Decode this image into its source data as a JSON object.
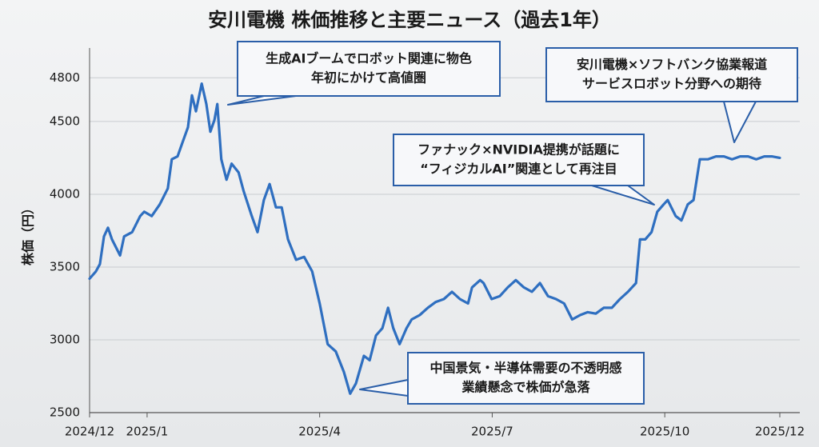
{
  "chart_data": {
    "type": "line",
    "title": "安川電機 株価推移と主要ニュース（過去1年）",
    "y_label": "株価（円）",
    "xlim": [
      0,
      12
    ],
    "xticks": [
      {
        "value": 0,
        "label": "2024/12"
      },
      {
        "value": 1,
        "label": "2025/1"
      },
      {
        "value": 4,
        "label": "2025/4"
      },
      {
        "value": 7,
        "label": "2025/7"
      },
      {
        "value": 10,
        "label": "2025/10"
      },
      {
        "value": 12,
        "label": "2025/12"
      }
    ],
    "ylim": [
      2500,
      4950
    ],
    "yticks": [
      2500,
      3000,
      3500,
      4000,
      4500,
      4800
    ],
    "grid": true,
    "series": [
      {
        "name": "安川電機",
        "color": "#2f6fc0",
        "x": [
          0,
          0.11,
          0.18,
          0.25,
          0.32,
          0.39,
          0.53,
          0.6,
          0.74,
          0.88,
          0.95,
          1.08,
          1.22,
          1.36,
          1.43,
          1.53,
          1.61,
          1.71,
          1.78,
          1.85,
          1.95,
          2.03,
          2.1,
          2.17,
          2.22,
          2.29,
          2.38,
          2.47,
          2.59,
          2.68,
          2.82,
          2.92,
          3.03,
          3.13,
          3.24,
          3.34,
          3.45,
          3.59,
          3.73,
          3.87,
          4.0,
          4.14,
          4.28,
          4.42,
          4.53,
          4.63,
          4.77,
          4.87,
          4.98,
          5.09,
          5.19,
          5.28,
          5.39,
          5.51,
          5.6,
          5.74,
          5.88,
          6.02,
          6.16,
          6.3,
          6.44,
          6.58,
          6.65,
          6.79,
          6.85,
          6.99,
          7.13,
          7.27,
          7.41,
          7.55,
          7.69,
          7.83,
          7.97,
          8.11,
          8.25,
          8.39,
          8.53,
          8.66,
          8.8,
          8.94,
          9.08,
          9.22,
          9.36,
          9.5,
          9.57,
          9.66,
          9.77,
          9.87,
          9.98,
          10.05,
          10.19,
          10.29,
          10.4,
          10.5,
          10.61,
          10.75,
          10.89,
          11.03,
          11.17,
          11.31,
          11.45,
          11.59,
          11.73,
          11.86,
          12.0
        ],
        "values": [
          3420,
          3470,
          3520,
          3710,
          3770,
          3690,
          3580,
          3710,
          3740,
          3850,
          3880,
          3850,
          3930,
          4040,
          4240,
          4260,
          4350,
          4460,
          4680,
          4570,
          4760,
          4620,
          4430,
          4510,
          4620,
          4240,
          4100,
          4210,
          4150,
          4020,
          3850,
          3740,
          3960,
          4070,
          3910,
          3910,
          3690,
          3550,
          3570,
          3470,
          3250,
          2970,
          2920,
          2780,
          2630,
          2700,
          2890,
          2860,
          3030,
          3080,
          3220,
          3080,
          2970,
          3080,
          3140,
          3170,
          3220,
          3260,
          3280,
          3330,
          3280,
          3250,
          3360,
          3410,
          3390,
          3280,
          3300,
          3360,
          3410,
          3360,
          3330,
          3390,
          3300,
          3280,
          3250,
          3140,
          3170,
          3190,
          3180,
          3220,
          3220,
          3280,
          3330,
          3390,
          3690,
          3690,
          3740,
          3880,
          3930,
          3960,
          3850,
          3820,
          3930,
          3960,
          4240,
          4240,
          4260,
          4260,
          4240,
          4260,
          4260,
          4240,
          4260,
          4260,
          4250
        ]
      }
    ],
    "annotations": [
      {
        "lines": [
          "生成AIブームでロボット関連に物色",
          "年初にかけて高値圏"
        ]
      },
      {
        "lines": [
          "安川電機×ソフトバンク協業報道",
          "サービスロボット分野への期待"
        ]
      },
      {
        "lines": [
          "ファナック×NVIDIA提携が話題に",
          "“フィジカルAI”関連として再注目"
        ]
      },
      {
        "lines": [
          "中国景気・半導体需要の不透明感",
          "業績懸念で株価が急落"
        ]
      }
    ]
  }
}
